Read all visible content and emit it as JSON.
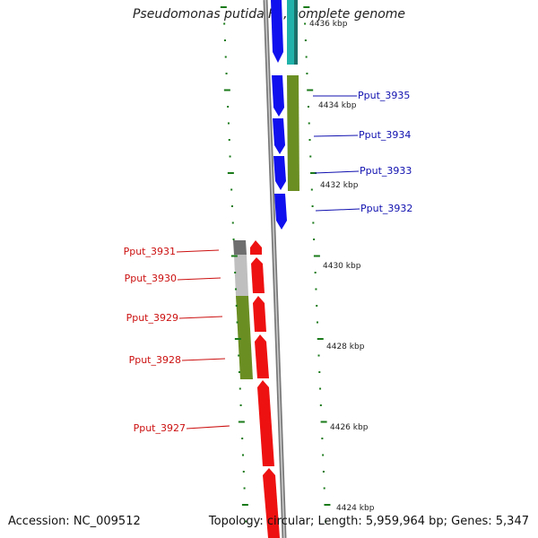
{
  "title": "Pseudomonas putida F1, complete genome",
  "footer": {
    "accession": "Accession: NC_009512",
    "summary": "Topology: circular; Length: 5,959,964 bp; Genes: 5,347"
  },
  "colors": {
    "forward_cds": "#1010ee",
    "reverse_cds": "#ee1111",
    "cog_olive": "#6b8e23",
    "cog_teal": "#20b2aa",
    "cog_grey": "#bfbfbf",
    "cog_darkgrey": "#6e6e6e",
    "backbone": "#8a8a8a",
    "ticks": "#1a7a1a"
  },
  "ruler": {
    "labels": [
      "4436 kbp",
      "4434 kbp",
      "4432 kbp",
      "4430 kbp",
      "4428 kbp",
      "4426 kbp",
      "4424 kbp"
    ]
  },
  "genes_forward": [
    {
      "name": "Pput_3935"
    },
    {
      "name": "Pput_3934"
    },
    {
      "name": "Pput_3933"
    },
    {
      "name": "Pput_3932"
    }
  ],
  "genes_reverse": [
    {
      "name": "Pput_3931"
    },
    {
      "name": "Pput_3930"
    },
    {
      "name": "Pput_3929"
    },
    {
      "name": "Pput_3928"
    },
    {
      "name": "Pput_3927"
    }
  ]
}
